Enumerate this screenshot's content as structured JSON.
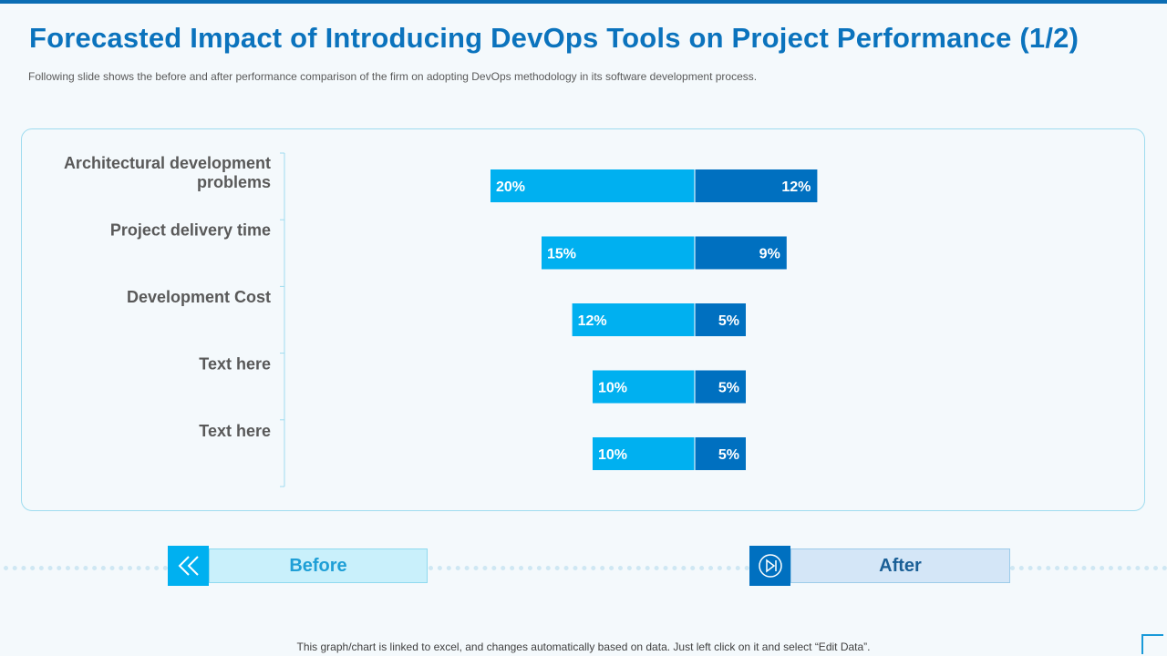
{
  "slide": {
    "title": "Forecasted Impact of Introducing DevOps Tools on Project Performance (1/2)",
    "subtitle": "Following slide shows the before and after performance comparison of the firm on adopting DevOps methodology in its software development process.",
    "footer_note": "This graph/chart is linked to excel, and changes automatically based on data. Just left click on it and select “Edit Data”."
  },
  "legend": {
    "before_label": "Before",
    "after_label": "After"
  },
  "colors": {
    "accent": "#0b73bd",
    "before": "#00b0f0",
    "after": "#0070c0",
    "before_box": "#c9f0fb",
    "after_box": "#d4e6f7",
    "panel_border": "#9fdcef"
  },
  "chart_data": {
    "type": "bar",
    "orientation": "horizontal",
    "layout": "diverging",
    "title": "",
    "xlabel": "",
    "ylabel": "",
    "categories": [
      "Architectural development problems",
      "Project delivery time",
      "Development Cost",
      "Text here",
      "Text here"
    ],
    "series": [
      {
        "name": "Before",
        "values": [
          20,
          15,
          12,
          10,
          10
        ],
        "labels": [
          "20%",
          "15%",
          "12%",
          "10%",
          "10%"
        ]
      },
      {
        "name": "After",
        "values": [
          12,
          9,
          5,
          5,
          5
        ],
        "labels": [
          "12%",
          "9%",
          "5%",
          "5%",
          "5%"
        ]
      }
    ],
    "value_unit": "%",
    "grid": false
  }
}
